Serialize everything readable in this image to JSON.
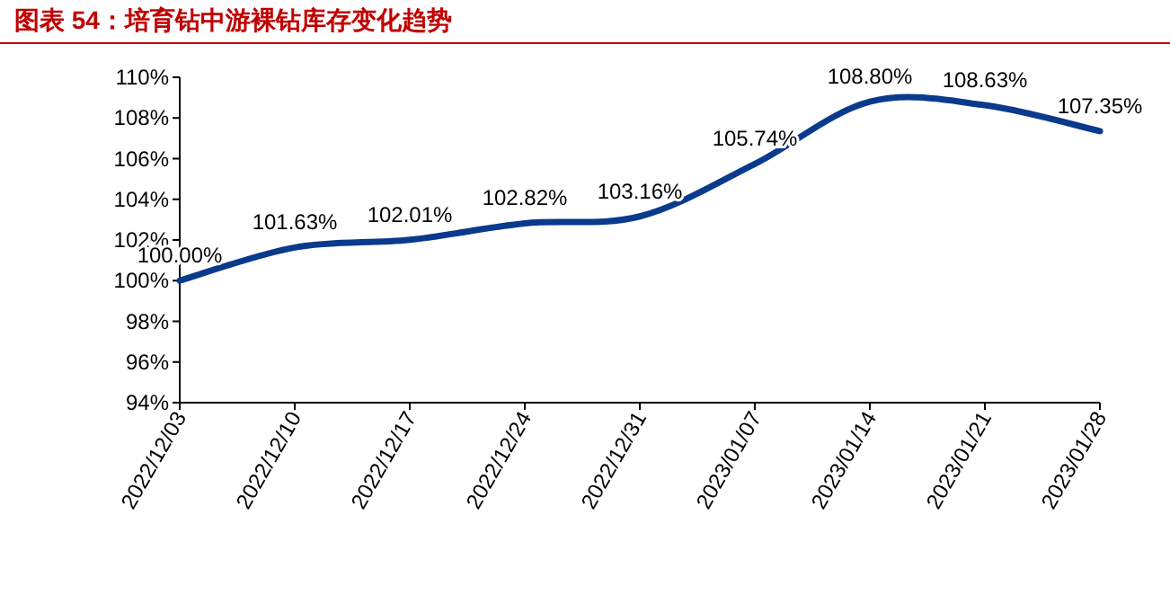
{
  "chart_data": {
    "type": "line",
    "title": "图表 54：培育钻中游裸钻库存变化趋势",
    "categories": [
      "2022/12/03",
      "2022/12/10",
      "2022/12/17",
      "2022/12/24",
      "2022/12/31",
      "2023/01/07",
      "2023/01/14",
      "2023/01/21",
      "2023/01/28"
    ],
    "series": [
      {
        "color": "#0a3a8c",
        "values": [
          100.0,
          101.63,
          102.01,
          102.82,
          103.16,
          105.74,
          108.8,
          108.63,
          107.35
        ],
        "value_labels": [
          "100.00%",
          "101.63%",
          "102.01%",
          "102.82%",
          "103.16%",
          "105.74%",
          "108.80%",
          "108.63%",
          "107.35%"
        ]
      }
    ],
    "ylim": [
      94,
      110
    ],
    "yticks": [
      {
        "value": 94,
        "label": "94%"
      },
      {
        "value": 96,
        "label": "96%"
      },
      {
        "value": 98,
        "label": "98%"
      },
      {
        "value": 100,
        "label": "100%"
      },
      {
        "value": 102,
        "label": "102%"
      },
      {
        "value": 104,
        "label": "104%"
      },
      {
        "value": 106,
        "label": "106%"
      },
      {
        "value": 108,
        "label": "108%"
      },
      {
        "value": 110,
        "label": "110%"
      }
    ],
    "grid": false,
    "marker": "none",
    "line_style": "solid"
  }
}
